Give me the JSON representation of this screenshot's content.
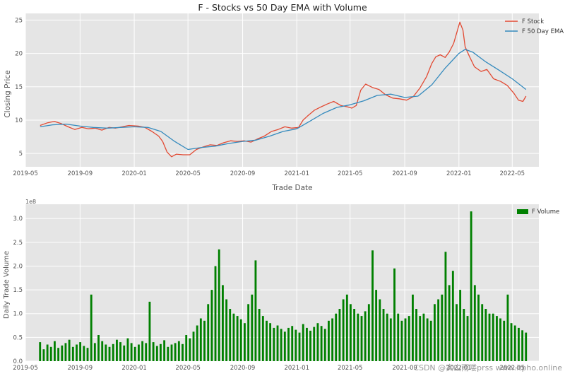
{
  "colors": {
    "panel": "#e5e5e5",
    "grid": "#ffffff",
    "stock_line": "#e24a33",
    "ema_line": "#348abd",
    "volume_bar": "#008000",
    "text": "#555555"
  },
  "watermark": "CSDN @实山雨喽prss www.itpho.online",
  "chart_data": [
    {
      "type": "line",
      "title": "F - Stocks vs 50 Day EMA with Volume",
      "xlabel": "Trade Date",
      "ylabel": "Closing Price",
      "xlim": [
        "2019-05-01",
        "2022-06-30"
      ],
      "ylim": [
        3,
        26
      ],
      "x_ticks": [
        "2019-05",
        "2019-09",
        "2020-01",
        "2020-05",
        "2020-09",
        "2021-01",
        "2021-05",
        "2021-09",
        "2022-01",
        "2022-05"
      ],
      "y_ticks": [
        5,
        10,
        15,
        20,
        25
      ],
      "grid": true,
      "legend": "top-right",
      "series": [
        {
          "name": "F Stock",
          "x": [
            "2019-06-03",
            "2019-06-20",
            "2019-07-05",
            "2019-07-20",
            "2019-08-05",
            "2019-08-20",
            "2019-09-05",
            "2019-09-20",
            "2019-10-05",
            "2019-10-20",
            "2019-11-05",
            "2019-11-20",
            "2019-12-05",
            "2019-12-20",
            "2020-01-10",
            "2020-01-25",
            "2020-02-10",
            "2020-02-25",
            "2020-03-05",
            "2020-03-15",
            "2020-03-25",
            "2020-04-05",
            "2020-04-20",
            "2020-05-05",
            "2020-05-20",
            "2020-06-05",
            "2020-06-20",
            "2020-07-05",
            "2020-07-20",
            "2020-08-05",
            "2020-08-20",
            "2020-09-05",
            "2020-09-20",
            "2020-10-05",
            "2020-10-20",
            "2020-11-05",
            "2020-11-20",
            "2020-12-05",
            "2020-12-20",
            "2021-01-05",
            "2021-01-15",
            "2021-01-25",
            "2021-02-10",
            "2021-02-25",
            "2021-03-10",
            "2021-03-25",
            "2021-04-10",
            "2021-04-25",
            "2021-05-05",
            "2021-05-15",
            "2021-05-25",
            "2021-06-05",
            "2021-06-20",
            "2021-07-05",
            "2021-07-20",
            "2021-08-05",
            "2021-08-20",
            "2021-09-05",
            "2021-09-20",
            "2021-10-05",
            "2021-10-20",
            "2021-11-01",
            "2021-11-10",
            "2021-11-20",
            "2021-12-01",
            "2021-12-10",
            "2021-12-20",
            "2022-01-03",
            "2022-01-10",
            "2022-01-15",
            "2022-01-25",
            "2022-02-05",
            "2022-02-20",
            "2022-03-05",
            "2022-03-20",
            "2022-04-05",
            "2022-04-20",
            "2022-05-05",
            "2022-05-15",
            "2022-05-25",
            "2022-06-01"
          ],
          "values": [
            9.2,
            9.6,
            9.8,
            9.5,
            9.0,
            8.6,
            8.9,
            8.7,
            8.8,
            8.5,
            8.9,
            8.8,
            9.0,
            9.2,
            9.1,
            8.9,
            8.3,
            7.6,
            6.8,
            5.2,
            4.5,
            4.9,
            4.8,
            4.8,
            5.6,
            6.0,
            6.3,
            6.2,
            6.6,
            6.9,
            6.8,
            6.9,
            6.7,
            7.2,
            7.6,
            8.3,
            8.6,
            9.0,
            8.8,
            8.9,
            10.0,
            10.6,
            11.5,
            12.0,
            12.4,
            12.8,
            12.2,
            12.0,
            11.8,
            12.2,
            14.5,
            15.4,
            14.9,
            14.6,
            13.8,
            13.3,
            13.2,
            13.0,
            13.5,
            14.8,
            16.5,
            18.5,
            19.5,
            19.8,
            19.4,
            20.2,
            21.5,
            24.7,
            23.5,
            21.0,
            19.5,
            18.0,
            17.3,
            17.6,
            16.2,
            15.8,
            15.2,
            14.0,
            13.0,
            12.8,
            13.6
          ]
        },
        {
          "name": "F 50 Day EMA",
          "x": [
            "2019-06-03",
            "2019-07-01",
            "2019-08-01",
            "2019-09-01",
            "2019-10-01",
            "2019-11-01",
            "2019-12-01",
            "2020-01-01",
            "2020-02-01",
            "2020-03-01",
            "2020-04-01",
            "2020-05-01",
            "2020-06-01",
            "2020-07-01",
            "2020-08-01",
            "2020-09-01",
            "2020-10-01",
            "2020-11-01",
            "2020-12-01",
            "2021-01-01",
            "2021-02-01",
            "2021-03-01",
            "2021-04-01",
            "2021-05-01",
            "2021-06-01",
            "2021-07-01",
            "2021-08-01",
            "2021-09-01",
            "2021-10-01",
            "2021-11-01",
            "2021-12-01",
            "2022-01-01",
            "2022-01-15",
            "2022-02-01",
            "2022-03-01",
            "2022-04-01",
            "2022-05-01",
            "2022-06-01"
          ],
          "values": [
            9.0,
            9.3,
            9.4,
            9.1,
            8.9,
            8.8,
            8.9,
            9.0,
            8.9,
            8.3,
            6.8,
            5.6,
            5.9,
            6.1,
            6.5,
            6.8,
            7.0,
            7.6,
            8.3,
            8.7,
            9.9,
            11.0,
            11.9,
            12.3,
            12.9,
            13.7,
            13.9,
            13.4,
            13.6,
            15.3,
            17.8,
            20.0,
            20.6,
            20.2,
            18.8,
            17.5,
            16.2,
            14.6
          ]
        }
      ]
    },
    {
      "type": "bar",
      "ylabel": "Daily Trade Volume",
      "scale_label": "1e8",
      "ylim": [
        0,
        3.3
      ],
      "xlim": [
        "2019-05-01",
        "2022-06-30"
      ],
      "x_ticks": [
        "2019-05",
        "2019-09",
        "2020-01",
        "2020-05",
        "2020-09",
        "2021-01",
        "2021-05",
        "2021-09",
        "2022-01",
        "2022-05"
      ],
      "y_ticks": [
        "0.0",
        "0.5",
        "1.0",
        "1.5",
        "2.0",
        "2.5",
        "3.0"
      ],
      "grid": true,
      "legend": "top-right",
      "series": [
        {
          "name": "F Volume",
          "unit_multiplier": 100000000,
          "x_start": "2019-06-03",
          "x_end": "2022-06-01",
          "values": [
            0.4,
            0.25,
            0.35,
            0.3,
            0.42,
            0.28,
            0.33,
            0.38,
            0.45,
            0.3,
            0.35,
            0.4,
            0.32,
            0.28,
            1.4,
            0.38,
            0.55,
            0.42,
            0.35,
            0.3,
            0.36,
            0.45,
            0.4,
            0.33,
            0.48,
            0.38,
            0.3,
            0.35,
            0.42,
            0.38,
            1.25,
            0.4,
            0.32,
            0.36,
            0.44,
            0.3,
            0.35,
            0.38,
            0.42,
            0.36,
            0.55,
            0.48,
            0.62,
            0.75,
            0.9,
            0.85,
            1.2,
            1.5,
            2.0,
            2.35,
            1.6,
            1.3,
            1.1,
            1.0,
            0.95,
            0.88,
            0.8,
            1.2,
            1.4,
            2.12,
            1.1,
            0.95,
            0.85,
            0.8,
            0.7,
            0.75,
            0.68,
            0.62,
            0.7,
            0.74,
            0.66,
            0.6,
            0.78,
            0.7,
            0.64,
            0.72,
            0.8,
            0.74,
            0.68,
            0.85,
            0.9,
            1.0,
            1.1,
            1.3,
            1.4,
            1.2,
            1.1,
            1.0,
            0.95,
            1.05,
            1.2,
            2.33,
            1.5,
            1.3,
            1.1,
            1.0,
            0.9,
            1.95,
            1.0,
            0.85,
            0.9,
            0.95,
            1.4,
            1.1,
            0.95,
            1.0,
            0.9,
            0.85,
            1.2,
            1.3,
            1.4,
            2.3,
            1.6,
            1.9,
            1.2,
            1.5,
            1.1,
            0.95,
            3.15,
            1.6,
            1.4,
            1.2,
            1.1,
            1.0,
            1.0,
            0.95,
            0.9,
            0.85,
            1.4,
            0.8,
            0.75,
            0.7,
            0.65,
            0.6
          ]
        }
      ]
    }
  ]
}
